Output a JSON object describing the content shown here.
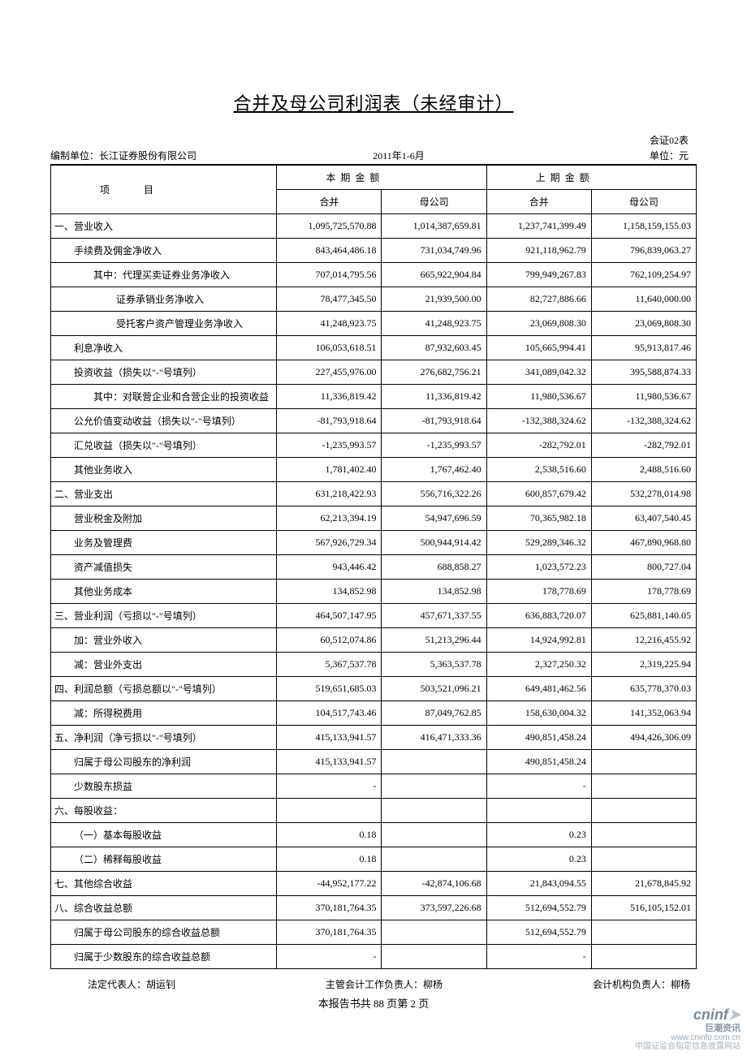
{
  "title": "合并及母公司利润表（未经审计）",
  "table_code": "会证02表",
  "meta": {
    "unit_label": "编制单位：长江证券股份有限公司",
    "period": "2011年1-6月",
    "currency": "单位：元"
  },
  "headers": {
    "item": "项　　目",
    "current": "本期金额",
    "prior": "上期金额",
    "consolidated": "合并",
    "parent": "母公司"
  },
  "rows": [
    {
      "indent": 0,
      "label": "一、营业收入",
      "v": [
        "1,095,725,570.88",
        "1,014,387,659.81",
        "1,237,741,399.49",
        "1,158,159,155.03"
      ]
    },
    {
      "indent": 1,
      "label": "手续费及佣金净收入",
      "v": [
        "843,464,486.18",
        "731,034,749.96",
        "921,118,962.79",
        "796,839,063.27"
      ]
    },
    {
      "indent": 2,
      "label": "其中：代理买卖证券业务净收入",
      "v": [
        "707,014,795.56",
        "665,922,904.84",
        "799,949,267.83",
        "762,109,254.97"
      ]
    },
    {
      "indent": 3,
      "label": "证券承销业务净收入",
      "v": [
        "78,477,345.50",
        "21,939,500.00",
        "82,727,886.66",
        "11,640,000.00"
      ]
    },
    {
      "indent": 3,
      "label": "受托客户资产管理业务净收入",
      "v": [
        "41,248,923.75",
        "41,248,923.75",
        "23,069,808.30",
        "23,069,808.30"
      ]
    },
    {
      "indent": 1,
      "label": "利息净收入",
      "v": [
        "106,053,618.51",
        "87,932,603.45",
        "105,665,994.41",
        "95,913,817.46"
      ]
    },
    {
      "indent": 1,
      "label": "投资收益（损失以\"-\"号填列）",
      "v": [
        "227,455,976.00",
        "276,682,756.21",
        "341,089,042.32",
        "395,588,874.33"
      ]
    },
    {
      "indent": 2,
      "label": "其中：对联营企业和合营企业的投资收益",
      "v": [
        "11,336,819.42",
        "11,336,819.42",
        "11,980,536.67",
        "11,980,536.67"
      ]
    },
    {
      "indent": 1,
      "label": "公允价值变动收益（损失以\"-\"号填列）",
      "v": [
        "-81,793,918.64",
        "-81,793,918.64",
        "-132,388,324.62",
        "-132,388,324.62"
      ]
    },
    {
      "indent": 1,
      "label": "汇兑收益（损失以\"-\"号填列）",
      "v": [
        "-1,235,993.57",
        "-1,235,993.57",
        "-282,792.01",
        "-282,792.01"
      ]
    },
    {
      "indent": 1,
      "label": "其他业务收入",
      "v": [
        "1,781,402.40",
        "1,767,462.40",
        "2,538,516.60",
        "2,488,516.60"
      ]
    },
    {
      "indent": 0,
      "label": "二、营业支出",
      "v": [
        "631,218,422.93",
        "556,716,322.26",
        "600,857,679.42",
        "532,278,014.98"
      ]
    },
    {
      "indent": 1,
      "label": "营业税金及附加",
      "v": [
        "62,213,394.19",
        "54,947,696.59",
        "70,365,982.18",
        "63,407,540.45"
      ]
    },
    {
      "indent": 1,
      "label": "业务及管理费",
      "v": [
        "567,926,729.34",
        "500,944,914.42",
        "529,289,346.32",
        "467,890,968.80"
      ]
    },
    {
      "indent": 1,
      "label": "资产减值损失",
      "v": [
        "943,446.42",
        "688,858.27",
        "1,023,572.23",
        "800,727.04"
      ]
    },
    {
      "indent": 1,
      "label": "其他业务成本",
      "v": [
        "134,852.98",
        "134,852.98",
        "178,778.69",
        "178,778.69"
      ]
    },
    {
      "indent": 0,
      "label": "三、营业利润（亏损以\"-\"号填列）",
      "v": [
        "464,507,147.95",
        "457,671,337.55",
        "636,883,720.07",
        "625,881,140.05"
      ]
    },
    {
      "indent": 1,
      "label": "加：营业外收入",
      "v": [
        "60,512,074.86",
        "51,213,296.44",
        "14,924,992.81",
        "12,216,455.92"
      ]
    },
    {
      "indent": 1,
      "label": "减：营业外支出",
      "v": [
        "5,367,537.78",
        "5,363,537.78",
        "2,327,250.32",
        "2,319,225.94"
      ]
    },
    {
      "indent": 0,
      "label": "四、利润总额（亏损总额以\"-\"号填列）",
      "v": [
        "519,651,685.03",
        "503,521,096.21",
        "649,481,462.56",
        "635,778,370.03"
      ]
    },
    {
      "indent": 1,
      "label": "减：所得税费用",
      "v": [
        "104,517,743.46",
        "87,049,762.85",
        "158,630,004.32",
        "141,352,063.94"
      ]
    },
    {
      "indent": 0,
      "label": "五、净利润（净亏损以\"-\"号填列）",
      "v": [
        "415,133,941.57",
        "416,471,333.36",
        "490,851,458.24",
        "494,426,306.09"
      ]
    },
    {
      "indent": 1,
      "label": "归属于母公司股东的净利润",
      "v": [
        "415,133,941.57",
        "",
        "490,851,458.24",
        ""
      ]
    },
    {
      "indent": 1,
      "label": "少数股东损益",
      "v": [
        "-",
        "",
        "-",
        ""
      ]
    },
    {
      "indent": 0,
      "label": "六、每股收益：",
      "v": [
        "",
        "",
        "",
        ""
      ]
    },
    {
      "indent": 1,
      "label": "（一）基本每股收益",
      "v": [
        "0.18",
        "",
        "0.23",
        ""
      ]
    },
    {
      "indent": 1,
      "label": "（二）稀释每股收益",
      "v": [
        "0.18",
        "",
        "0.23",
        ""
      ]
    },
    {
      "indent": 0,
      "label": "七、其他综合收益",
      "v": [
        "-44,952,177.22",
        "-42,874,106.68",
        "21,843,094.55",
        "21,678,845.92"
      ]
    },
    {
      "indent": 0,
      "label": "八、综合收益总额",
      "v": [
        "370,181,764.35",
        "373,597,226.68",
        "512,694,552.79",
        "516,105,152.01"
      ]
    },
    {
      "indent": 1,
      "label": "归属于母公司股东的综合收益总额",
      "v": [
        "370,181,764.35",
        "",
        "512,694,552.79",
        ""
      ]
    },
    {
      "indent": 1,
      "label": "归属于少数股东的综合收益总额",
      "v": [
        "-",
        "",
        "-",
        ""
      ]
    }
  ],
  "signatures": {
    "legal_rep": "法定代表人：胡运钊",
    "accounting_head": "主管会计工作负责人：柳杨",
    "accounting_org": "会计机构负责人：柳杨"
  },
  "footer": "本报告书共 88 页第 2 页",
  "watermark": {
    "logo_primary": "cninf",
    "logo_accent": "巨潮资讯",
    "url": "www.cninfo.com.cn",
    "desc": "中国证监会指定信息披露网站"
  }
}
